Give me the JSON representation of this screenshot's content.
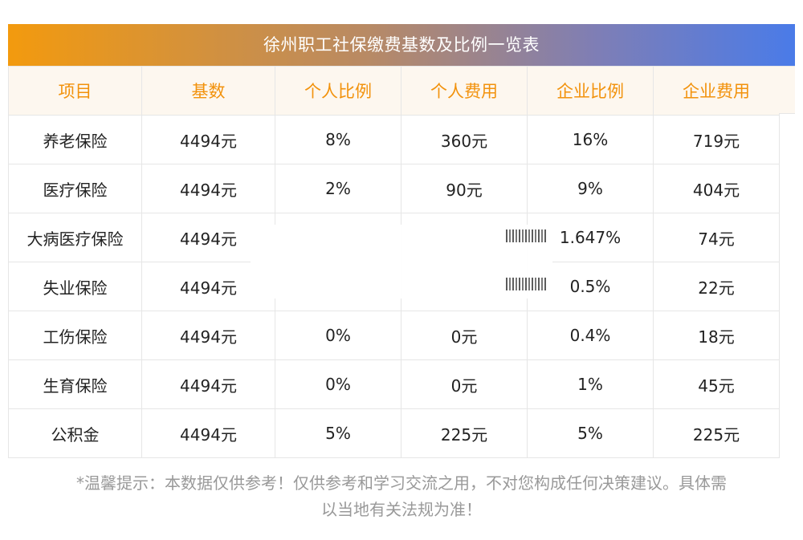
{
  "title": "徐州职工社保缴费基数及比例一览表",
  "headers": [
    "项目",
    "基数",
    "个人比例",
    "个人费用",
    "企业比例",
    "企业费用"
  ],
  "rows": [
    [
      "养老保险",
      "4494元",
      "8%",
      "360元",
      "16%",
      "719元"
    ],
    [
      "医疗保险",
      "4494元",
      "2%",
      "90元",
      "9%",
      "404元"
    ],
    [
      "大病医疗保险",
      "4494元",
      "",
      "",
      "1.647%",
      "74元"
    ],
    [
      "失业保险",
      "4494元",
      "",
      "",
      "0.5%",
      "22元"
    ],
    [
      "工伤保险",
      "4494元",
      "0%",
      "0元",
      "0.4%",
      "18元"
    ],
    [
      "生育保险",
      "4494元",
      "0%",
      "0元",
      "1%",
      "45元"
    ],
    [
      "公积金",
      "4494元",
      "5%",
      "225元",
      "5%",
      "225元"
    ]
  ],
  "note_line1": "*温馨提示：本数据仅供参考！仅供参考和学习交流之用，不对您构成任何决策建议。具体需",
  "note_line2": "以当地有关法规为准！"
}
